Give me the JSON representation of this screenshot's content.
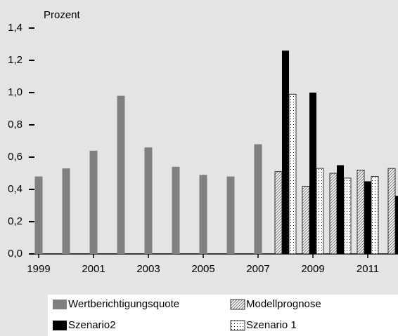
{
  "chart_data": {
    "type": "bar",
    "y_label": "Prozent",
    "categories": [
      "1999",
      null,
      "2001",
      null,
      "2003",
      null,
      "2005",
      null,
      "2007",
      null,
      "2009",
      null,
      "2011",
      null
    ],
    "series": [
      {
        "name": "Wertberichtigungsquote",
        "color": "#808080",
        "pattern": "solid",
        "values": [
          0.48,
          0.53,
          0.64,
          0.98,
          0.66,
          0.54,
          0.49,
          0.48,
          0.68,
          null,
          null,
          null,
          null,
          null
        ]
      },
      {
        "name": "Modellprognose",
        "color": "#808080",
        "pattern": "hatch",
        "values": [
          null,
          null,
          null,
          null,
          null,
          null,
          null,
          null,
          null,
          0.51,
          0.42,
          0.5,
          0.52,
          0.53
        ]
      },
      {
        "name": "Szenario2",
        "color": "#000000",
        "pattern": "solid",
        "values": [
          null,
          null,
          null,
          null,
          null,
          null,
          null,
          null,
          null,
          1.26,
          1.0,
          0.55,
          0.45,
          0.36
        ]
      },
      {
        "name": "Szenario 1",
        "color": "#000000",
        "pattern": "dots",
        "values": [
          null,
          null,
          null,
          null,
          null,
          null,
          null,
          null,
          null,
          0.99,
          0.53,
          0.47,
          0.48,
          null
        ]
      }
    ],
    "ylim": [
      0,
      1.4
    ],
    "yticks": [
      {
        "value": 0,
        "label": "0,0"
      },
      {
        "value": 0.2,
        "label": "0,2"
      },
      {
        "value": 0.4,
        "label": "0,4"
      },
      {
        "value": 0.6,
        "label": "0,6"
      },
      {
        "value": 0.8,
        "label": "0,8"
      },
      {
        "value": 1.0,
        "label": "1,0"
      },
      {
        "value": 1.2,
        "label": "1,2"
      },
      {
        "value": 1.4,
        "label": "1,4"
      }
    ],
    "grid": false
  }
}
